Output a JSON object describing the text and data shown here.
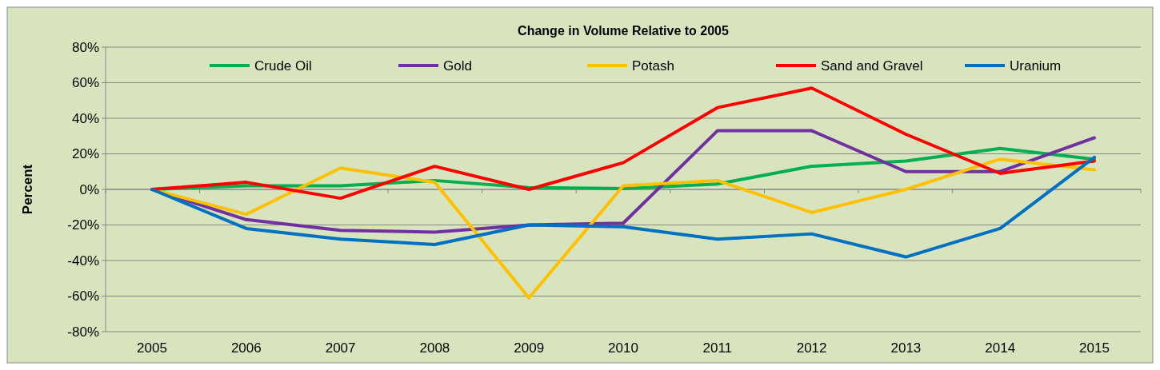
{
  "chart_data": {
    "type": "line",
    "title": "Change in Volume Relative to 2005",
    "ylabel": "Percent",
    "categories": [
      "2005",
      "2006",
      "2007",
      "2008",
      "2009",
      "2010",
      "2011",
      "2012",
      "2013",
      "2014",
      "2015"
    ],
    "series": [
      {
        "name": "Crude Oil",
        "color": "#00b050",
        "values": [
          0,
          2,
          2,
          5,
          1,
          0.5,
          3,
          13,
          16,
          23,
          17
        ]
      },
      {
        "name": "Gold",
        "color": "#7030a0",
        "values": [
          0,
          -17,
          -23,
          -24,
          -20,
          -19,
          33,
          33,
          10,
          10,
          29
        ]
      },
      {
        "name": "Potash",
        "color": "#ffc000",
        "values": [
          0,
          -14,
          12,
          4,
          -61,
          2,
          5,
          -13,
          0,
          17,
          11
        ]
      },
      {
        "name": "Sand and Gravel",
        "color": "#ff0000",
        "values": [
          0,
          4,
          -5,
          13,
          0,
          15,
          46,
          57,
          31,
          9,
          16
        ]
      },
      {
        "name": "Uranium",
        "color": "#0070c0",
        "values": [
          0,
          -22,
          -28,
          -31,
          -20,
          -21,
          -28,
          -25,
          -38,
          -22,
          18
        ]
      }
    ],
    "ylim": [
      -80,
      80
    ],
    "yticks": [
      {
        "value": -80,
        "label": "-80%"
      },
      {
        "value": -60,
        "label": "-60%"
      },
      {
        "value": -40,
        "label": "-40%"
      },
      {
        "value": -20,
        "label": "-20%"
      },
      {
        "value": 0,
        "label": "0%"
      },
      {
        "value": 20,
        "label": "20%"
      },
      {
        "value": 40,
        "label": "40%"
      },
      {
        "value": 60,
        "label": "60%"
      },
      {
        "value": 80,
        "label": "80%"
      }
    ],
    "grid": "y",
    "legend": "top",
    "marker": "none",
    "line_style": "solid"
  }
}
